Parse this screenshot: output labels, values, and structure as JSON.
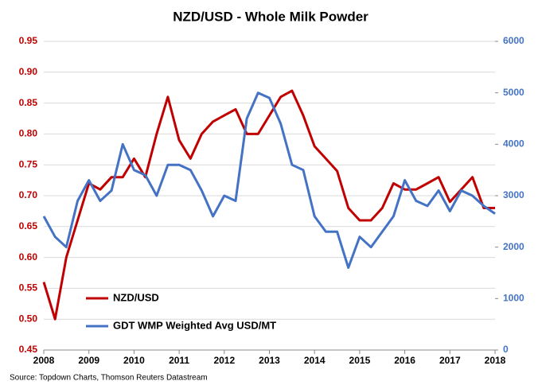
{
  "chart_data": {
    "type": "line",
    "title": "NZD/USD - Whole Milk Powder",
    "source": "Source: Topdown Charts, Thomson Reuters Datastream",
    "x": [
      2008,
      2008.25,
      2008.5,
      2008.75,
      2009,
      2009.25,
      2009.5,
      2009.75,
      2010,
      2010.25,
      2010.5,
      2010.75,
      2011,
      2011.25,
      2011.5,
      2011.75,
      2012,
      2012.25,
      2012.5,
      2012.75,
      2013,
      2013.25,
      2013.5,
      2013.75,
      2014,
      2014.25,
      2014.5,
      2014.75,
      2015,
      2015.25,
      2015.5,
      2015.75,
      2016,
      2016.25,
      2016.5,
      2016.75,
      2017,
      2017.25,
      2017.5,
      2017.75,
      2018
    ],
    "series": [
      {
        "name": "NZD/USD",
        "color": "#c00000",
        "values": [
          0.56,
          0.5,
          0.6,
          0.66,
          0.72,
          0.71,
          0.73,
          0.73,
          0.76,
          0.73,
          0.8,
          0.86,
          0.79,
          0.76,
          0.8,
          0.82,
          0.83,
          0.84,
          0.8,
          0.8,
          0.83,
          0.86,
          0.87,
          0.83,
          0.78,
          0.76,
          0.74,
          0.68,
          0.66,
          0.66,
          0.68,
          0.72,
          0.71,
          0.71,
          0.72,
          0.73,
          0.69,
          0.71,
          0.73,
          0.68,
          0.68
        ]
      },
      {
        "name": "GDT WMP Weighted Avg USD/MT",
        "color": "#4472c4",
        "axis": "y2",
        "values": [
          2600,
          2200,
          2000,
          2900,
          3300,
          2900,
          3100,
          4000,
          3500,
          3400,
          3000,
          3600,
          3600,
          3500,
          3100,
          2600,
          3000,
          2900,
          4500,
          5000,
          4900,
          4400,
          3600,
          3500,
          2600,
          2300,
          2300,
          1600,
          2200,
          2000,
          2300,
          2600,
          3300,
          2900,
          2800,
          3100,
          2700,
          3100,
          3000,
          2800,
          2650
        ]
      }
    ],
    "xlim": [
      2008,
      2018
    ],
    "xticks": [
      2008,
      2009,
      2010,
      2011,
      2012,
      2013,
      2014,
      2015,
      2016,
      2017,
      2018
    ],
    "ylim": [
      0.45,
      0.95
    ],
    "yticks": [
      {
        "value": 0.45,
        "label": "0.45"
      },
      {
        "value": 0.5,
        "label": "0.50"
      },
      {
        "value": 0.55,
        "label": "0.55"
      },
      {
        "value": 0.6,
        "label": "0.60"
      },
      {
        "value": 0.65,
        "label": "0.65"
      },
      {
        "value": 0.7,
        "label": "0.70"
      },
      {
        "value": 0.75,
        "label": "0.75"
      },
      {
        "value": 0.8,
        "label": "0.80"
      },
      {
        "value": 0.85,
        "label": "0.85"
      },
      {
        "value": 0.9,
        "label": "0.90"
      },
      {
        "value": 0.95,
        "label": "0.95"
      }
    ],
    "y2lim": [
      0,
      6000
    ],
    "y2ticks": [
      0,
      1000,
      2000,
      3000,
      4000,
      5000,
      6000
    ],
    "grid": true,
    "legend": "lower left"
  }
}
